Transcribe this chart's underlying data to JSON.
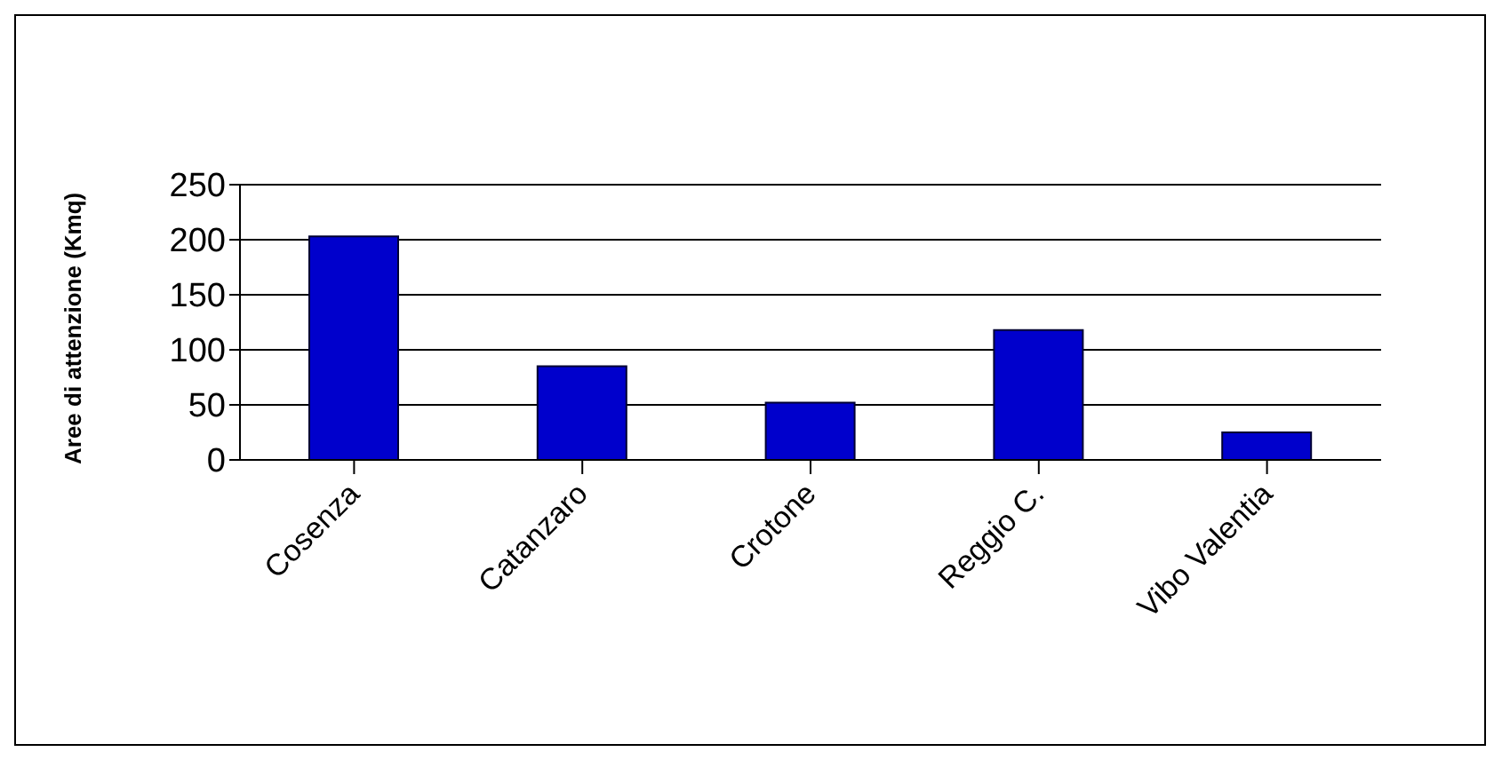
{
  "chart_data": {
    "type": "bar",
    "ylabel": "Aree di attenzione (Kmq)",
    "categories": [
      "Cosenza",
      "Catanzaro",
      "Crotone",
      "Reggio C.",
      "Vibo Valentia"
    ],
    "values": [
      203,
      85,
      52,
      118,
      25
    ],
    "color": "#0000cc",
    "ylim": [
      0,
      250
    ],
    "yticks": [
      0,
      50,
      100,
      150,
      200,
      250
    ],
    "grid": "y",
    "legend": false
  }
}
